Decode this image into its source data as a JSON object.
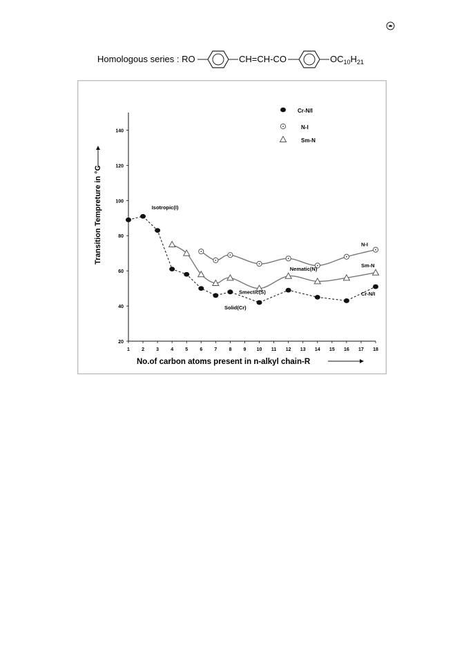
{
  "header": {
    "prefix": "Homologous series : RO",
    "link": "CH=CH-CO",
    "tail_main": "OC",
    "tail_sub1": "10",
    "tail_mid": "H",
    "tail_sub2": "21"
  },
  "chart_data": {
    "type": "line",
    "xlabel": "No.of carbon atoms present  in n-alkyl chain-R",
    "ylabel": "Transition Tempreture in °C",
    "xlim": [
      1,
      18
    ],
    "ylim": [
      20,
      150
    ],
    "x_ticks": [
      1,
      2,
      3,
      4,
      5,
      6,
      7,
      8,
      9,
      10,
      11,
      12,
      13,
      14,
      15,
      16,
      17,
      18
    ],
    "y_ticks": [
      20,
      40,
      60,
      80,
      100,
      120,
      140
    ],
    "legend_position": "top-right",
    "series": [
      {
        "name": "Cr-N/I",
        "marker": "filled-circle",
        "line": "dashed",
        "x": [
          1,
          2,
          3,
          4,
          5,
          6,
          7,
          8,
          10,
          12,
          14,
          16,
          18
        ],
        "y": [
          89,
          91,
          83,
          61,
          58,
          50,
          46,
          48,
          42,
          49,
          45,
          43,
          51
        ]
      },
      {
        "name": "N-I",
        "marker": "dotted-circle",
        "line": "solid",
        "x": [
          6,
          7,
          8,
          10,
          12,
          14,
          16,
          18
        ],
        "y": [
          71,
          66,
          69,
          64,
          67,
          63,
          68,
          72
        ]
      },
      {
        "name": "Sm-N",
        "marker": "triangle",
        "line": "solid",
        "x": [
          4,
          5,
          6,
          7,
          8,
          10,
          12,
          14,
          16,
          18
        ],
        "y": [
          75,
          70,
          58,
          53,
          56,
          50,
          57,
          54,
          56,
          59
        ]
      }
    ],
    "annotations": [
      {
        "text": "Isotropic(I)",
        "x": 2.6,
        "y": 95
      },
      {
        "text": "N-I",
        "x": 17.0,
        "y": 74
      },
      {
        "text": "Nematic(N)",
        "x": 12.1,
        "y": 60
      },
      {
        "text": "Sm-N",
        "x": 17.0,
        "y": 62
      },
      {
        "text": "Smectic(S)",
        "x": 8.6,
        "y": 47
      },
      {
        "text": "Cr-N/I",
        "x": 17.0,
        "y": 46
      },
      {
        "text": "Solid(Cr)",
        "x": 7.6,
        "y": 38
      }
    ]
  }
}
